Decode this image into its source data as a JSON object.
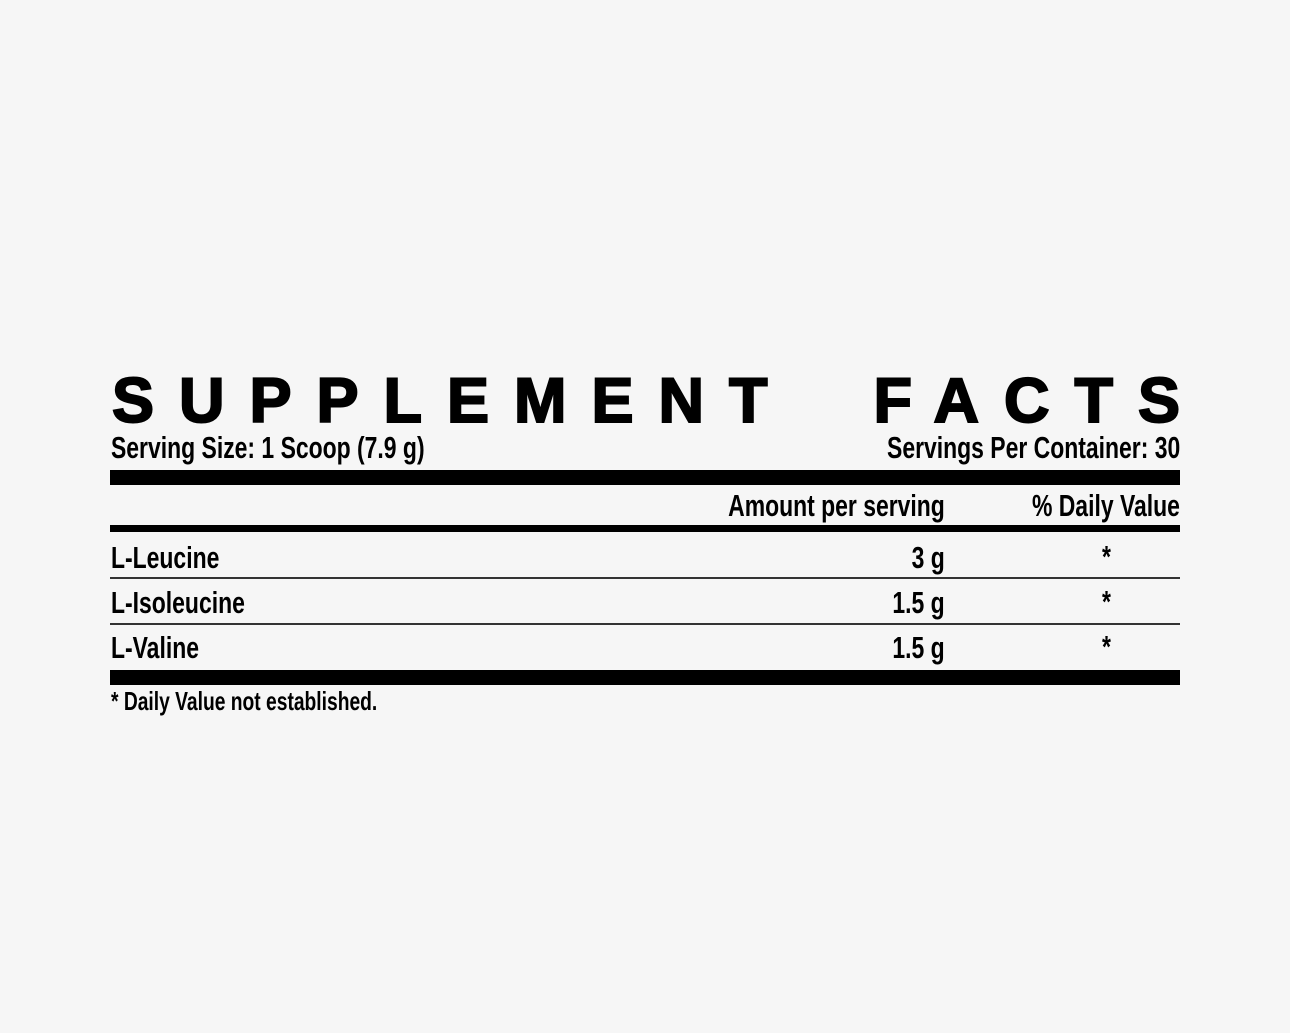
{
  "title_word1": "SUPPLEMENT",
  "title_word2": "FACTS",
  "serving_size": "Serving Size: 1 Scoop (7.9 g)",
  "servings_per_container": "Servings Per Container: 30",
  "columns": {
    "amount": "Amount per serving",
    "daily_value": "% Daily Value"
  },
  "rows": [
    {
      "name": "L-Leucine",
      "amount": "3 g",
      "dv": "*"
    },
    {
      "name": "L-Isoleucine",
      "amount": "1.5 g",
      "dv": "*"
    },
    {
      "name": "L-Valine",
      "amount": "1.5 g",
      "dv": "*"
    }
  ],
  "footnote": "* Daily Value not established."
}
